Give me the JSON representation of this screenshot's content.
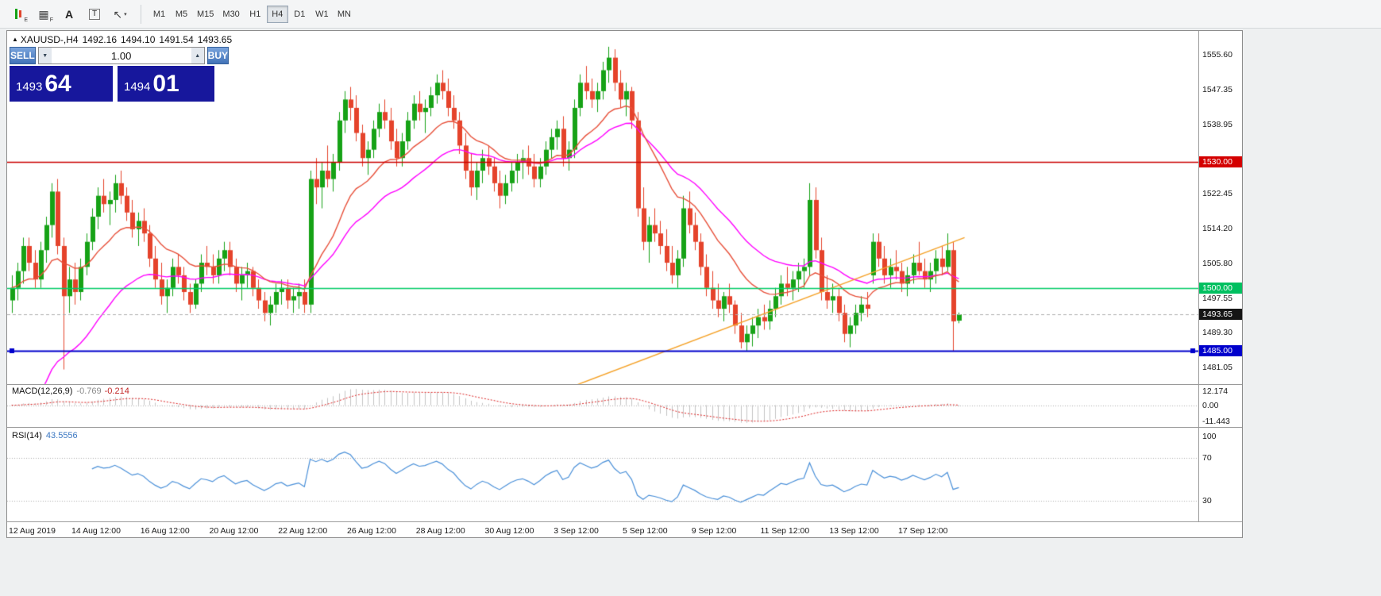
{
  "toolbar": {
    "icons": [
      {
        "name": "candlestick-chart-icon",
        "glyph": "",
        "sub": "E"
      },
      {
        "name": "grid-windows-icon",
        "glyph": "▦",
        "sub": "F"
      },
      {
        "name": "text-label-icon",
        "glyph": "A",
        "sub": ""
      },
      {
        "name": "text-box-icon",
        "glyph": "T",
        "sub": ""
      },
      {
        "name": "cursor-tool-icon",
        "glyph": "↖",
        "sub": "▾"
      }
    ],
    "timeframes": [
      {
        "label": "M1"
      },
      {
        "label": "M5"
      },
      {
        "label": "M15"
      },
      {
        "label": "M30"
      },
      {
        "label": "H1"
      },
      {
        "label": "H4",
        "active": true
      },
      {
        "label": "D1"
      },
      {
        "label": "W1"
      },
      {
        "label": "MN"
      }
    ]
  },
  "chart": {
    "header": {
      "collapse_glyph": "▲",
      "symbol_period": "XAUUSD-,H4",
      "open": "1492.16",
      "high": "1494.10",
      "low": "1491.54",
      "close": "1493.65"
    },
    "trade_panel": {
      "sell_label": "SELL",
      "buy_label": "BUY",
      "volume": "1.00",
      "dec_glyph": "▼",
      "inc_glyph": "▲",
      "sell_price_small": "1493",
      "sell_price_big": "64",
      "buy_price_small": "1494",
      "buy_price_big": "01"
    }
  },
  "macd": {
    "title": "MACD(12,26,9)",
    "main_value": "-0.769",
    "signal_value": "-0.214",
    "axis": [
      "12.174",
      "0.00",
      "-11.443"
    ]
  },
  "rsi": {
    "title": "RSI(14)",
    "value": "43.5556",
    "axis": [
      "100",
      "70",
      "30"
    ]
  },
  "chart_data": {
    "type": "candlestick",
    "symbol": "XAUUSD-",
    "timeframe": "H4",
    "ylim": [
      1477,
      1561
    ],
    "y_ticks": [
      1555.6,
      1547.35,
      1538.95,
      1522.45,
      1514.2,
      1505.8,
      1497.55,
      1489.3,
      1481.05
    ],
    "x_labels": [
      {
        "i": 1,
        "t": "12 Aug 2019"
      },
      {
        "i": 15,
        "t": "14 Aug 12:00"
      },
      {
        "i": 27,
        "t": "16 Aug 12:00"
      },
      {
        "i": 39,
        "t": "20 Aug 12:00"
      },
      {
        "i": 51,
        "t": "22 Aug 12:00"
      },
      {
        "i": 63,
        "t": "26 Aug 12:00"
      },
      {
        "i": 75,
        "t": "28 Aug 12:00"
      },
      {
        "i": 87,
        "t": "30 Aug 12:00"
      },
      {
        "i": 99,
        "t": "3 Sep 12:00"
      },
      {
        "i": 111,
        "t": "5 Sep 12:00"
      },
      {
        "i": 123,
        "t": "9 Sep 12:00"
      },
      {
        "i": 135,
        "t": "11 Sep 12:00"
      },
      {
        "i": 147,
        "t": "13 Sep 12:00"
      },
      {
        "i": 159,
        "t": "17 Sep 12:00"
      }
    ],
    "colors": {
      "up": "#16a216",
      "down": "#e5432b",
      "macd_bar": "#c4c4c4",
      "macd_signal": "#dd2222",
      "rsi_line": "#4a90d9"
    },
    "ma_fast": {
      "type": "ema",
      "period": 16,
      "color": "#e8503a"
    },
    "ma_slow": {
      "type": "ema",
      "period": 30,
      "seed": 1460,
      "color": "#ff00ff"
    },
    "trendline": {
      "from": [
        70,
        1462
      ],
      "to": [
        166,
        1512
      ],
      "color": "#f5a32a"
    },
    "hlines": [
      {
        "price": 1530.0,
        "color": "#cc0000",
        "width": 1.4,
        "handles": false
      },
      {
        "price": 1500.0,
        "color": "#00cc66",
        "width": 1.4,
        "handles": false
      },
      {
        "price": 1485.0,
        "color": "#0000cc",
        "width": 2,
        "handles": true
      }
    ],
    "bid_line": {
      "price": 1493.65,
      "color": "#b0b0b0"
    },
    "price_tags": [
      {
        "price": 1530.0,
        "label": "1530.00",
        "color": "#d40000"
      },
      {
        "price": 1500.0,
        "label": "1500.00",
        "color": "#00c060"
      },
      {
        "price": 1493.65,
        "label": "1493.65",
        "color": "#151515"
      },
      {
        "price": 1485.0,
        "label": "1485.00",
        "color": "#0000cc"
      }
    ],
    "candles": [
      [
        1497,
        1503,
        1494,
        1500
      ],
      [
        1500,
        1506,
        1497,
        1504
      ],
      [
        1504,
        1512,
        1501,
        1510
      ],
      [
        1510,
        1512,
        1504,
        1506
      ],
      [
        1506,
        1509,
        1500,
        1502
      ],
      [
        1502,
        1511,
        1500,
        1509
      ],
      [
        1509,
        1517,
        1506,
        1515
      ],
      [
        1515,
        1525,
        1512,
        1523
      ],
      [
        1523,
        1526,
        1508,
        1510
      ],
      [
        1510,
        1512,
        1480.5,
        1498
      ],
      [
        1498,
        1505,
        1494,
        1502
      ],
      [
        1502,
        1506,
        1496,
        1499
      ],
      [
        1499,
        1507,
        1497,
        1505
      ],
      [
        1505,
        1513,
        1503,
        1511
      ],
      [
        1511,
        1519,
        1509,
        1517
      ],
      [
        1517,
        1524,
        1514,
        1522
      ],
      [
        1522,
        1526,
        1518,
        1520
      ],
      [
        1520,
        1523,
        1515,
        1521
      ],
      [
        1521,
        1527,
        1518,
        1525
      ],
      [
        1525,
        1528,
        1520,
        1522
      ],
      [
        1522,
        1524,
        1516,
        1518
      ],
      [
        1518,
        1521,
        1512,
        1514
      ],
      [
        1514,
        1518,
        1510,
        1516
      ],
      [
        1516,
        1519,
        1511,
        1513
      ],
      [
        1513,
        1515,
        1505,
        1507
      ],
      [
        1507,
        1510,
        1500,
        1502
      ],
      [
        1502,
        1506,
        1496,
        1498
      ],
      [
        1498,
        1502,
        1494,
        1500
      ],
      [
        1500,
        1507,
        1498,
        1505
      ],
      [
        1505,
        1508,
        1501,
        1503
      ],
      [
        1503,
        1505,
        1497,
        1499
      ],
      [
        1499,
        1501,
        1494,
        1496
      ],
      [
        1496,
        1502,
        1495,
        1501
      ],
      [
        1501,
        1508,
        1499,
        1506
      ],
      [
        1506,
        1510,
        1503,
        1505
      ],
      [
        1505,
        1508,
        1501,
        1503
      ],
      [
        1503,
        1509,
        1501,
        1507
      ],
      [
        1507,
        1511,
        1504,
        1509
      ],
      [
        1509,
        1511,
        1503,
        1505
      ],
      [
        1505,
        1507,
        1499,
        1501
      ],
      [
        1501,
        1505,
        1497,
        1503
      ],
      [
        1503,
        1506,
        1500,
        1504
      ],
      [
        1504,
        1505,
        1498,
        1500
      ],
      [
        1500,
        1502,
        1495,
        1497
      ],
      [
        1497,
        1499,
        1492,
        1494
      ],
      [
        1494,
        1498,
        1491,
        1496
      ],
      [
        1496,
        1501,
        1494,
        1499
      ],
      [
        1499,
        1502,
        1496,
        1500
      ],
      [
        1500,
        1502,
        1495,
        1497
      ],
      [
        1497,
        1500,
        1494,
        1498
      ],
      [
        1498,
        1501,
        1495,
        1499
      ],
      [
        1499,
        1502,
        1494,
        1496
      ],
      [
        1496,
        1528,
        1494,
        1526
      ],
      [
        1526,
        1531,
        1520,
        1524
      ],
      [
        1524,
        1530,
        1519,
        1528
      ],
      [
        1528,
        1534,
        1524,
        1526
      ],
      [
        1526,
        1532,
        1523,
        1530
      ],
      [
        1530,
        1542,
        1528,
        1540
      ],
      [
        1540,
        1547,
        1537,
        1545
      ],
      [
        1545,
        1548,
        1540,
        1543
      ],
      [
        1543,
        1546,
        1535,
        1537
      ],
      [
        1537,
        1539,
        1529,
        1531
      ],
      [
        1531,
        1535,
        1527,
        1533
      ],
      [
        1533,
        1540,
        1531,
        1538
      ],
      [
        1538,
        1544,
        1536,
        1542
      ],
      [
        1542,
        1545,
        1538,
        1540
      ],
      [
        1540,
        1543,
        1533,
        1535
      ],
      [
        1535,
        1538,
        1529,
        1531
      ],
      [
        1531,
        1537,
        1529,
        1535
      ],
      [
        1535,
        1542,
        1533,
        1540
      ],
      [
        1540,
        1546,
        1538,
        1544
      ],
      [
        1544,
        1547,
        1540,
        1542
      ],
      [
        1542,
        1545,
        1537,
        1543
      ],
      [
        1543,
        1548,
        1541,
        1546
      ],
      [
        1546,
        1551,
        1544,
        1549
      ],
      [
        1549,
        1552,
        1545,
        1547
      ],
      [
        1547,
        1550,
        1541,
        1543
      ],
      [
        1543,
        1546,
        1538,
        1540
      ],
      [
        1540,
        1542,
        1532,
        1534
      ],
      [
        1534,
        1537,
        1526,
        1528
      ],
      [
        1528,
        1532,
        1522,
        1524
      ],
      [
        1524,
        1530,
        1521,
        1528
      ],
      [
        1528,
        1533,
        1525,
        1531
      ],
      [
        1531,
        1534,
        1527,
        1529
      ],
      [
        1529,
        1531,
        1523,
        1525
      ],
      [
        1525,
        1528,
        1519,
        1522
      ],
      [
        1522,
        1527,
        1520,
        1525
      ],
      [
        1525,
        1530,
        1523,
        1528
      ],
      [
        1528,
        1532,
        1525,
        1530
      ],
      [
        1530,
        1533,
        1526,
        1531
      ],
      [
        1531,
        1534,
        1527,
        1529
      ],
      [
        1529,
        1532,
        1524,
        1526
      ],
      [
        1526,
        1531,
        1524,
        1529
      ],
      [
        1529,
        1535,
        1527,
        1533
      ],
      [
        1533,
        1538,
        1531,
        1536
      ],
      [
        1536,
        1540,
        1533,
        1538
      ],
      [
        1538,
        1541,
        1529,
        1531
      ],
      [
        1531,
        1535,
        1528,
        1533
      ],
      [
        1533,
        1545,
        1531,
        1543
      ],
      [
        1543,
        1551,
        1541,
        1549
      ],
      [
        1549,
        1553,
        1545,
        1547
      ],
      [
        1547,
        1550,
        1543,
        1545
      ],
      [
        1545,
        1549,
        1542,
        1547
      ],
      [
        1547,
        1554,
        1545,
        1552
      ],
      [
        1552,
        1557.6,
        1549,
        1555
      ],
      [
        1555,
        1557,
        1547,
        1549
      ],
      [
        1549,
        1552,
        1543,
        1545
      ],
      [
        1545,
        1549,
        1541,
        1547
      ],
      [
        1547,
        1548,
        1538,
        1540
      ],
      [
        1540,
        1542,
        1517,
        1519
      ],
      [
        1519,
        1524,
        1509,
        1511
      ],
      [
        1511,
        1517,
        1506,
        1515
      ],
      [
        1515,
        1519,
        1511,
        1513
      ],
      [
        1513,
        1516,
        1508,
        1510
      ],
      [
        1510,
        1514,
        1504,
        1506
      ],
      [
        1506,
        1510,
        1501,
        1503
      ],
      [
        1503,
        1509,
        1500,
        1507
      ],
      [
        1507,
        1522,
        1505,
        1519
      ],
      [
        1519,
        1523,
        1513,
        1515
      ],
      [
        1515,
        1518,
        1509,
        1511
      ],
      [
        1511,
        1513,
        1503,
        1505
      ],
      [
        1505,
        1508,
        1498,
        1500
      ],
      [
        1500,
        1504,
        1495,
        1497
      ],
      [
        1497,
        1501,
        1493,
        1495
      ],
      [
        1495,
        1499,
        1492,
        1498
      ],
      [
        1498,
        1501,
        1494,
        1496
      ],
      [
        1496,
        1497,
        1489,
        1491
      ],
      [
        1491,
        1494,
        1485.5,
        1487
      ],
      [
        1487,
        1491,
        1484.8,
        1489
      ],
      [
        1489,
        1493,
        1486,
        1491
      ],
      [
        1491,
        1495,
        1488,
        1493
      ],
      [
        1493,
        1496,
        1490,
        1492
      ],
      [
        1492,
        1497,
        1490,
        1495
      ],
      [
        1495,
        1500,
        1493,
        1498
      ],
      [
        1498,
        1503,
        1496,
        1501
      ],
      [
        1501,
        1505,
        1498,
        1500
      ],
      [
        1500,
        1504,
        1497,
        1502
      ],
      [
        1502,
        1506,
        1499,
        1504
      ],
      [
        1504,
        1507,
        1500,
        1505
      ],
      [
        1505,
        1525,
        1503,
        1521
      ],
      [
        1521,
        1524,
        1507,
        1509
      ],
      [
        1509,
        1512,
        1497,
        1499
      ],
      [
        1499,
        1503,
        1495,
        1497
      ],
      [
        1497,
        1501,
        1494,
        1498
      ],
      [
        1498,
        1500,
        1492,
        1494
      ],
      [
        1494,
        1496,
        1487,
        1489
      ],
      [
        1489,
        1493,
        1485.8,
        1491
      ],
      [
        1491,
        1496,
        1489,
        1494
      ],
      [
        1494,
        1498,
        1492,
        1496
      ],
      [
        1496,
        1499,
        1493,
        1495
      ],
      [
        1503,
        1513,
        1501,
        1511
      ],
      [
        1511,
        1513,
        1505,
        1507
      ],
      [
        1507,
        1510,
        1501,
        1503
      ],
      [
        1503,
        1507,
        1500,
        1505
      ],
      [
        1505,
        1509,
        1502,
        1504
      ],
      [
        1504,
        1506,
        1499,
        1501
      ],
      [
        1501,
        1505,
        1498,
        1503
      ],
      [
        1503,
        1508,
        1501,
        1506
      ],
      [
        1506,
        1511,
        1503,
        1504
      ],
      [
        1504,
        1507,
        1500,
        1502
      ],
      [
        1502,
        1506,
        1499,
        1504
      ],
      [
        1504,
        1509,
        1501,
        1507
      ],
      [
        1507,
        1510,
        1503,
        1505
      ],
      [
        1505,
        1513,
        1504,
        1509
      ],
      [
        1509,
        1511,
        1484.9,
        1492
      ],
      [
        1492.16,
        1494.1,
        1491.54,
        1493.65
      ]
    ]
  }
}
